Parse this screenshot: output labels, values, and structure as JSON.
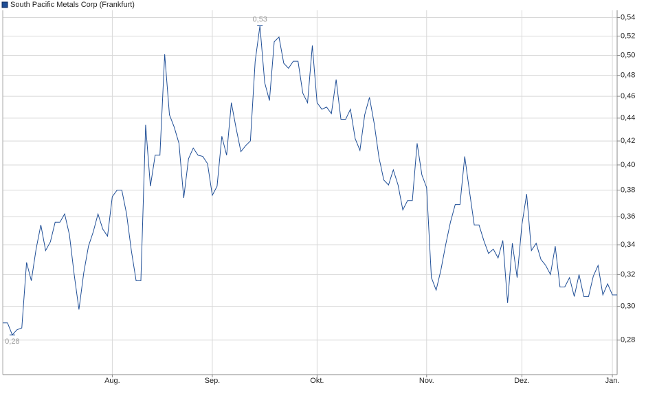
{
  "chart_data": {
    "type": "line",
    "series": [
      {
        "name": "South Pacific Metals Corp (Frankfurt)",
        "color": "#1f4e96",
        "values": [
          0.29,
          0.29,
          0.283,
          0.286,
          0.287,
          0.328,
          0.316,
          0.337,
          0.354,
          0.336,
          0.342,
          0.356,
          0.356,
          0.362,
          0.347,
          0.32,
          0.298,
          0.321,
          0.339,
          0.349,
          0.362,
          0.351,
          0.346,
          0.375,
          0.38,
          0.38,
          0.362,
          0.336,
          0.316,
          0.316,
          0.434,
          0.383,
          0.408,
          0.408,
          0.501,
          0.443,
          0.432,
          0.418,
          0.374,
          0.405,
          0.414,
          0.408,
          0.407,
          0.401,
          0.376,
          0.383,
          0.424,
          0.408,
          0.454,
          0.431,
          0.411,
          0.416,
          0.42,
          0.494,
          0.531,
          0.473,
          0.456,
          0.514,
          0.519,
          0.492,
          0.487,
          0.494,
          0.494,
          0.463,
          0.454,
          0.51,
          0.454,
          0.448,
          0.45,
          0.444,
          0.476,
          0.439,
          0.439,
          0.448,
          0.422,
          0.412,
          0.443,
          0.459,
          0.435,
          0.406,
          0.388,
          0.384,
          0.396,
          0.384,
          0.365,
          0.372,
          0.372,
          0.418,
          0.392,
          0.382,
          0.318,
          0.31,
          0.323,
          0.34,
          0.356,
          0.369,
          0.369,
          0.407,
          0.379,
          0.354,
          0.354,
          0.343,
          0.334,
          0.337,
          0.331,
          0.343,
          0.302,
          0.341,
          0.318,
          0.354,
          0.377,
          0.336,
          0.341,
          0.33,
          0.326,
          0.32,
          0.339,
          0.312,
          0.312,
          0.318,
          0.306,
          0.32,
          0.306,
          0.306,
          0.319,
          0.326,
          0.307,
          0.314,
          0.307,
          0.307
        ],
        "value_labels": [
          null,
          null,
          "0,28",
          null,
          null,
          null,
          null,
          null,
          null,
          null,
          null,
          null,
          null,
          null,
          null,
          null,
          null,
          null,
          null,
          null,
          null,
          null,
          null,
          null,
          null,
          null,
          null,
          null,
          null,
          null,
          null,
          null,
          null,
          null,
          null,
          null,
          null,
          null,
          null,
          null,
          null,
          null,
          null,
          null,
          null,
          null,
          null,
          null,
          null,
          null,
          null,
          null,
          null,
          null,
          "0,53",
          null,
          null,
          null,
          null,
          null,
          null,
          null,
          null,
          null,
          null,
          null,
          null,
          null,
          null,
          null,
          null,
          null,
          null,
          null,
          null,
          null,
          null,
          null,
          null,
          null,
          null,
          null,
          null,
          null,
          null,
          null,
          null,
          null,
          null,
          null,
          null,
          null,
          null,
          null,
          null,
          null,
          null,
          null,
          null,
          null,
          null,
          null,
          null,
          null,
          null,
          null,
          null,
          null,
          null,
          null,
          null,
          null,
          null,
          null,
          null,
          null,
          null,
          null,
          null,
          null,
          null,
          null,
          null,
          null,
          null,
          null,
          null,
          null,
          null,
          null
        ]
      }
    ],
    "categories": [
      null,
      null,
      null,
      null,
      null,
      null,
      null,
      null,
      null,
      null,
      null,
      null,
      null,
      null,
      null,
      null,
      null,
      null,
      null,
      null,
      null,
      null,
      null,
      "Aug.",
      null,
      null,
      null,
      null,
      null,
      null,
      null,
      null,
      null,
      null,
      null,
      null,
      null,
      null,
      null,
      null,
      null,
      null,
      null,
      null,
      "Sep.",
      null,
      null,
      null,
      null,
      null,
      null,
      null,
      null,
      null,
      null,
      null,
      null,
      null,
      null,
      null,
      null,
      null,
      null,
      null,
      null,
      null,
      "Okt.",
      null,
      null,
      null,
      null,
      null,
      null,
      null,
      null,
      null,
      null,
      null,
      null,
      null,
      null,
      null,
      null,
      null,
      null,
      null,
      null,
      null,
      null,
      "Nov.",
      null,
      null,
      null,
      null,
      null,
      null,
      null,
      null,
      null,
      null,
      null,
      null,
      null,
      null,
      null,
      null,
      null,
      null,
      null,
      "Dez.",
      null,
      null,
      null,
      null,
      null,
      null,
      null,
      null,
      null,
      null,
      null,
      null,
      null,
      null,
      null,
      null,
      null,
      null,
      "Jan.",
      null
    ],
    "ylim": [
      0.261,
      0.548
    ],
    "log_y": true,
    "grid": true,
    "yticks": [
      {
        "value": 0.28,
        "label": "0,28"
      },
      {
        "value": 0.3,
        "label": "0,30"
      },
      {
        "value": 0.32,
        "label": "0,32"
      },
      {
        "value": 0.34,
        "label": "0,34"
      },
      {
        "value": 0.36,
        "label": "0,36"
      },
      {
        "value": 0.38,
        "label": "0,38"
      },
      {
        "value": 0.4,
        "label": "0,40"
      },
      {
        "value": 0.42,
        "label": "0,42"
      },
      {
        "value": 0.44,
        "label": "0,44"
      },
      {
        "value": 0.46,
        "label": "0,46"
      },
      {
        "value": 0.48,
        "label": "0,48"
      },
      {
        "value": 0.5,
        "label": "0,50"
      },
      {
        "value": 0.52,
        "label": "0,52"
      },
      {
        "value": 0.54,
        "label": "0,54"
      }
    ],
    "legend": "top-left"
  }
}
